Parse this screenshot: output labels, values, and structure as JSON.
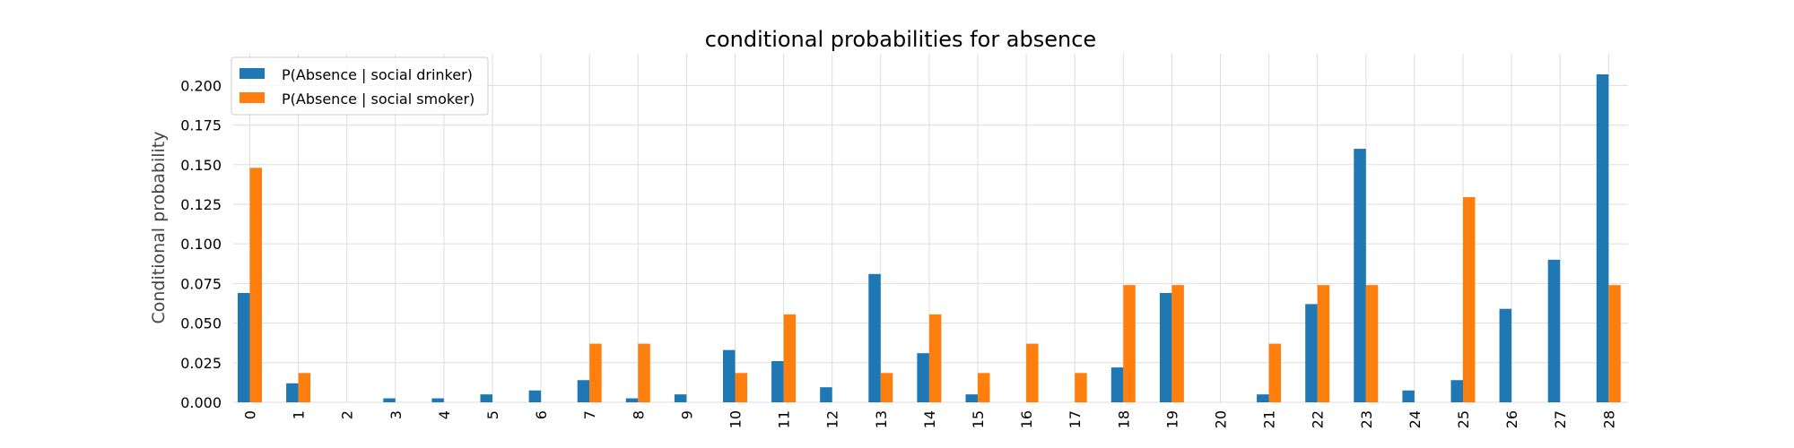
{
  "chart_data": {
    "type": "bar",
    "title": "conditional probabilities for absence",
    "xlabel": "",
    "ylabel": "Conditional probability",
    "categories": [
      "0",
      "1",
      "2",
      "3",
      "4",
      "5",
      "6",
      "7",
      "8",
      "9",
      "10",
      "11",
      "12",
      "13",
      "14",
      "15",
      "16",
      "17",
      "18",
      "19",
      "20",
      "21",
      "22",
      "23",
      "24",
      "25",
      "26",
      "27",
      "28"
    ],
    "yticks": [
      "0.000",
      "0.025",
      "0.050",
      "0.075",
      "0.100",
      "0.125",
      "0.150",
      "0.175",
      "0.200"
    ],
    "ylim": [
      0,
      0.22
    ],
    "grid": true,
    "legend_position": "top-left",
    "series": [
      {
        "name": "P(Absence | social drinker)",
        "color": "#1f77b4",
        "values": [
          0.069,
          0.012,
          0.0,
          0.0025,
          0.0025,
          0.005,
          0.0075,
          0.014,
          0.0025,
          0.005,
          0.033,
          0.026,
          0.0095,
          0.081,
          0.031,
          0.005,
          0.0,
          0.0,
          0.022,
          0.069,
          0.0,
          0.005,
          0.062,
          0.16,
          0.0075,
          0.014,
          0.059,
          0.09,
          0.207
        ]
      },
      {
        "name": "P(Absence | social smoker)",
        "color": "#ff7f0e",
        "values": [
          0.148,
          0.0185,
          0.0,
          0.0,
          0.0,
          0.0,
          0.0,
          0.037,
          0.037,
          0.0,
          0.0185,
          0.0555,
          0.0,
          0.0185,
          0.0555,
          0.0185,
          0.037,
          0.0185,
          0.074,
          0.074,
          0.0,
          0.037,
          0.074,
          0.074,
          0.0,
          0.1295,
          0.0,
          0.0,
          0.074
        ]
      }
    ]
  }
}
